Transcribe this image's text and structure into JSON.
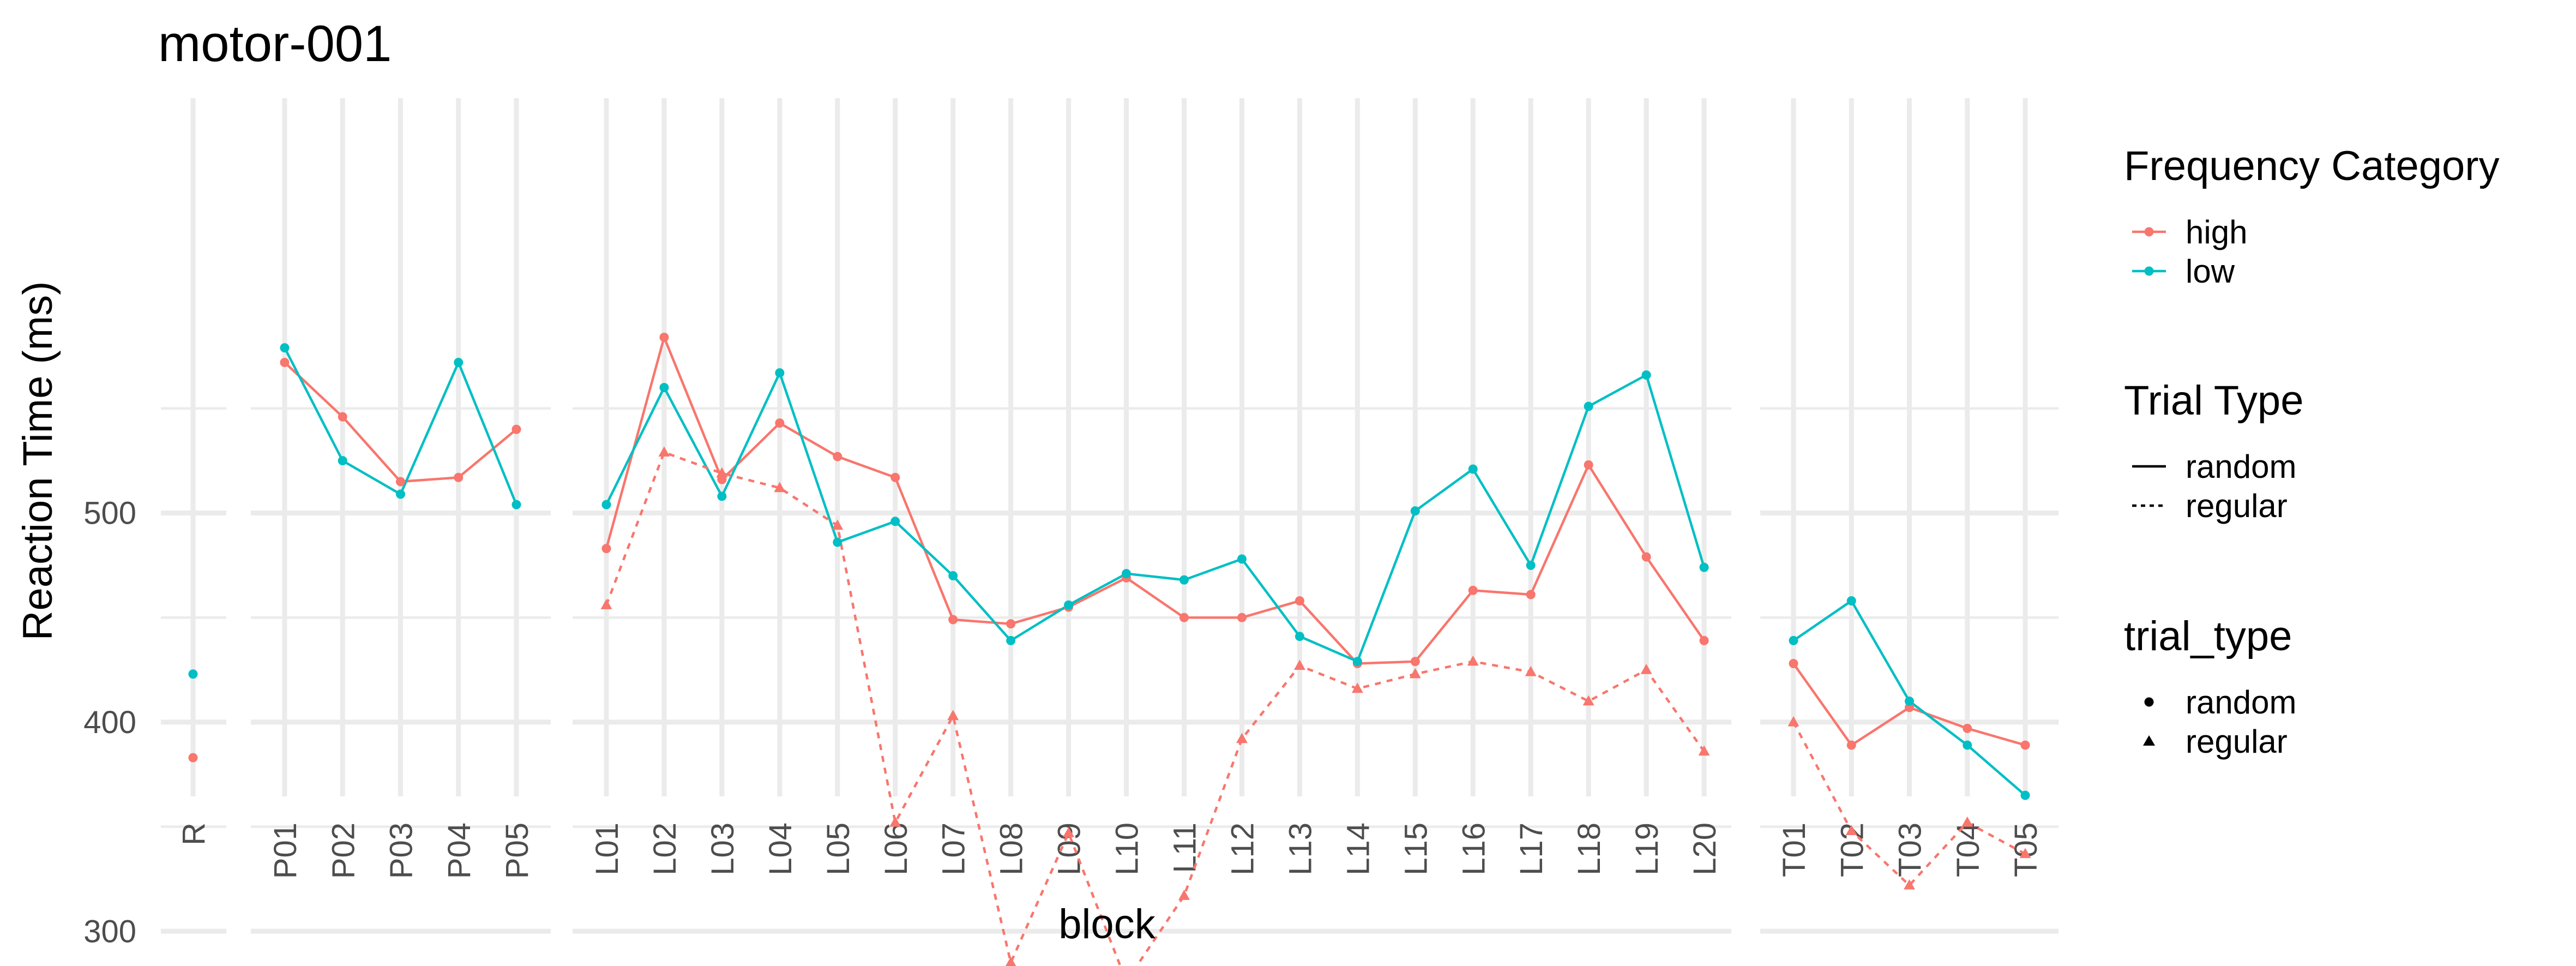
{
  "chart_data": {
    "type": "line",
    "title": "motor-001",
    "xlabel": "block",
    "ylabel": "Reaction Time (ms)",
    "ylim": [
      260,
      600
    ],
    "yticks": [
      300,
      400,
      500
    ],
    "grid": true,
    "legend_position": "right",
    "panels": [
      {
        "blocks": [
          "R"
        ]
      },
      {
        "blocks": [
          "P01",
          "P02",
          "P03",
          "P04",
          "P05"
        ]
      },
      {
        "blocks": [
          "L01",
          "L02",
          "L03",
          "L04",
          "L05",
          "L06",
          "L07",
          "L08",
          "L09",
          "L10",
          "L11",
          "L12",
          "L13",
          "L14",
          "L15",
          "L16",
          "L17",
          "L18",
          "L19",
          "L20"
        ]
      },
      {
        "blocks": [
          "T01",
          "T02",
          "T03",
          "T04",
          "T05"
        ]
      }
    ],
    "series": [
      {
        "frequency": "high",
        "trial_type": "random",
        "color": "#F8766D",
        "points": [
          [
            "R",
            383
          ],
          [
            "P01",
            572
          ],
          [
            "P02",
            546
          ],
          [
            "P03",
            515
          ],
          [
            "P04",
            517
          ],
          [
            "P05",
            540
          ],
          [
            "L01",
            483
          ],
          [
            "L02",
            584
          ],
          [
            "L03",
            516
          ],
          [
            "L04",
            543
          ],
          [
            "L05",
            527
          ],
          [
            "L06",
            517
          ],
          [
            "L07",
            449
          ],
          [
            "L08",
            447
          ],
          [
            "L09",
            455
          ],
          [
            "L10",
            469
          ],
          [
            "L11",
            450
          ],
          [
            "L12",
            450
          ],
          [
            "L13",
            458
          ],
          [
            "L14",
            428
          ],
          [
            "L15",
            429
          ],
          [
            "L16",
            463
          ],
          [
            "L17",
            461
          ],
          [
            "L18",
            523
          ],
          [
            "L19",
            479
          ],
          [
            "L20",
            439
          ],
          [
            "T01",
            428
          ],
          [
            "T02",
            389
          ],
          [
            "T03",
            407
          ],
          [
            "T04",
            397
          ],
          [
            "T05",
            389
          ]
        ]
      },
      {
        "frequency": "low",
        "trial_type": "random",
        "color": "#00BFC4",
        "points": [
          [
            "R",
            423
          ],
          [
            "P01",
            579
          ],
          [
            "P02",
            525
          ],
          [
            "P03",
            509
          ],
          [
            "P04",
            572
          ],
          [
            "P05",
            504
          ],
          [
            "L01",
            504
          ],
          [
            "L02",
            560
          ],
          [
            "L03",
            508
          ],
          [
            "L04",
            567
          ],
          [
            "L05",
            486
          ],
          [
            "L06",
            496
          ],
          [
            "L07",
            470
          ],
          [
            "L08",
            439
          ],
          [
            "L09",
            456
          ],
          [
            "L10",
            471
          ],
          [
            "L11",
            468
          ],
          [
            "L12",
            478
          ],
          [
            "L13",
            441
          ],
          [
            "L14",
            429
          ],
          [
            "L15",
            501
          ],
          [
            "L16",
            521
          ],
          [
            "L17",
            475
          ],
          [
            "L18",
            551
          ],
          [
            "L19",
            566
          ],
          [
            "L20",
            474
          ],
          [
            "T01",
            439
          ],
          [
            "T02",
            458
          ],
          [
            "T03",
            410
          ],
          [
            "T04",
            389
          ],
          [
            "T05",
            365
          ]
        ]
      },
      {
        "frequency": "high",
        "trial_type": "regular",
        "color": "#F8766D",
        "points": [
          [
            "L01",
            456
          ],
          [
            "L02",
            529
          ],
          [
            "L03",
            519
          ],
          [
            "L04",
            512
          ],
          [
            "L05",
            494
          ],
          [
            "L06",
            352
          ],
          [
            "L07",
            403
          ],
          [
            "L08",
            285
          ],
          [
            "L09",
            347
          ],
          [
            "L10",
            276
          ],
          [
            "L11",
            317
          ],
          [
            "L12",
            392
          ],
          [
            "L13",
            427
          ],
          [
            "L14",
            416
          ],
          [
            "L15",
            423
          ],
          [
            "L16",
            429
          ],
          [
            "L17",
            424
          ],
          [
            "L18",
            410
          ],
          [
            "L19",
            425
          ],
          [
            "L20",
            386
          ],
          [
            "T01",
            400
          ],
          [
            "T02",
            348
          ],
          [
            "T03",
            322
          ],
          [
            "T04",
            352
          ],
          [
            "T05",
            337
          ]
        ]
      }
    ],
    "legends": [
      {
        "title": "Frequency Category",
        "items": [
          {
            "label": "high",
            "color": "#F8766D"
          },
          {
            "label": "low",
            "color": "#00BFC4"
          }
        ]
      },
      {
        "title": "Trial Type",
        "items": [
          {
            "label": "random",
            "linetype": "solid"
          },
          {
            "label": "regular",
            "linetype": "dotted"
          }
        ]
      },
      {
        "title": "trial_type",
        "items": [
          {
            "label": "random",
            "shape": "circle"
          },
          {
            "label": "regular",
            "shape": "triangle"
          }
        ]
      }
    ]
  }
}
